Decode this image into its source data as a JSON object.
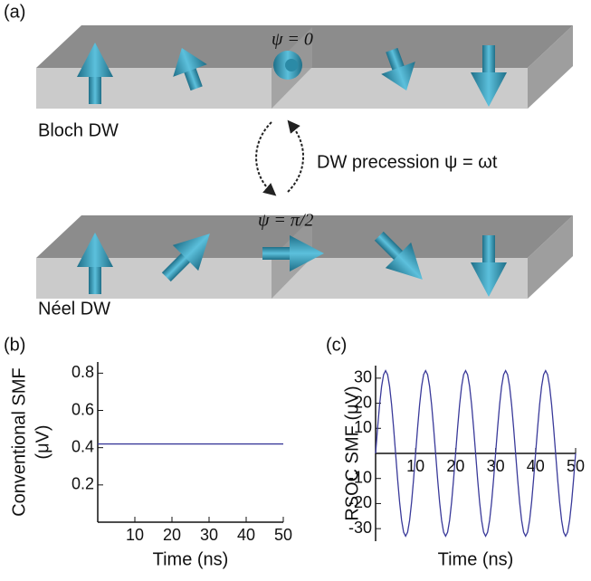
{
  "diagram": {
    "panel_label": "(a)",
    "top": {
      "angle_label": "ψ = 0",
      "label": "Bloch DW"
    },
    "precession_label": "DW precession ψ = ωt",
    "bottom": {
      "angle_label": "ψ = π/2",
      "label": "Néel DW"
    }
  },
  "chart_data": [
    {
      "type": "line",
      "panel_label": "(b)",
      "xlabel": "Time (ns)",
      "ylabel": [
        "Conventional SMF",
        "(μV)"
      ],
      "x": [
        0,
        50
      ],
      "series": [
        {
          "color": "#3a3a9a",
          "values": [
            0.42,
            0.42
          ]
        }
      ],
      "xlim": [
        0,
        50
      ],
      "xticks": [
        10,
        20,
        30,
        40,
        50
      ],
      "ylim": [
        0,
        0.86
      ],
      "yticks": [
        0.2,
        0.4,
        0.6,
        0.8
      ]
    },
    {
      "type": "line",
      "panel_label": "(c)",
      "xlabel": "Time (ns)",
      "ylabel": [
        "RSOC SMF (μV)"
      ],
      "x": [
        0,
        0.5,
        1,
        1.5,
        2,
        2.5,
        3,
        3.5,
        4,
        4.5,
        5,
        5.5,
        6,
        6.5,
        7,
        7.5,
        8,
        8.5,
        9,
        9.5,
        10,
        10.5,
        11,
        11.5,
        12,
        12.5,
        13,
        13.5,
        14,
        14.5,
        15,
        15.5,
        16,
        16.5,
        17,
        17.5,
        18,
        18.5,
        19,
        19.5,
        20,
        20.5,
        21,
        21.5,
        22,
        22.5,
        23,
        23.5,
        24,
        24.5,
        25,
        25.5,
        26,
        26.5,
        27,
        27.5,
        28,
        28.5,
        29,
        29.5,
        30,
        30.5,
        31,
        31.5,
        32,
        32.5,
        33,
        33.5,
        34,
        34.5,
        35,
        35.5,
        36,
        36.5,
        37,
        37.5,
        38,
        38.5,
        39,
        39.5,
        40,
        40.5,
        41,
        41.5,
        42,
        42.5,
        43,
        43.5,
        44,
        44.5,
        45,
        45.5,
        46,
        46.5,
        47,
        47.5,
        48,
        48.5,
        49,
        49.5,
        50
      ],
      "series": [
        {
          "color": "#3a3a9a",
          "values": [
            0,
            10.2,
            19.4,
            26.7,
            31.4,
            33,
            31.4,
            26.7,
            19.4,
            10.2,
            0,
            -10.2,
            -19.4,
            -26.7,
            -31.4,
            -33,
            -31.4,
            -26.7,
            -19.4,
            -10.2,
            0,
            10.2,
            19.4,
            26.7,
            31.4,
            33,
            31.4,
            26.7,
            19.4,
            10.2,
            0,
            -10.2,
            -19.4,
            -26.7,
            -31.4,
            -33,
            -31.4,
            -26.7,
            -19.4,
            -10.2,
            0,
            10.2,
            19.4,
            26.7,
            31.4,
            33,
            31.4,
            26.7,
            19.4,
            10.2,
            0,
            -10.2,
            -19.4,
            -26.7,
            -31.4,
            -33,
            -31.4,
            -26.7,
            -19.4,
            -10.2,
            0,
            10.2,
            19.4,
            26.7,
            31.4,
            33,
            31.4,
            26.7,
            19.4,
            10.2,
            0,
            -10.2,
            -19.4,
            -26.7,
            -31.4,
            -33,
            -31.4,
            -26.7,
            -19.4,
            -10.2,
            0,
            10.2,
            19.4,
            26.7,
            31.4,
            33,
            31.4,
            26.7,
            19.4,
            10.2,
            0,
            -10.2,
            -19.4,
            -26.7,
            -31.4,
            -33,
            -31.4,
            -26.7,
            -19.4,
            -10.2,
            0
          ]
        }
      ],
      "xlim": [
        0,
        50
      ],
      "xticks": [
        10,
        20,
        30,
        40,
        50
      ],
      "ylim": [
        -35,
        35
      ],
      "yticks": [
        -30,
        -20,
        -10,
        10,
        20,
        30
      ]
    }
  ]
}
